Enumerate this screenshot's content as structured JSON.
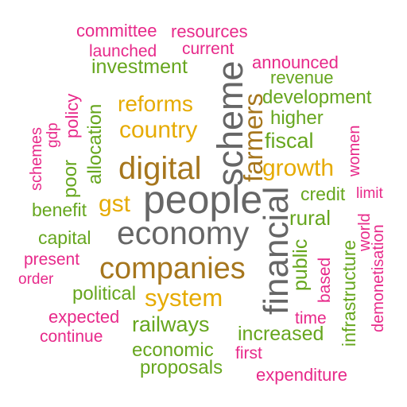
{
  "colors": {
    "pink": "#e7298a",
    "green": "#66a61e",
    "gold": "#e6ab02",
    "brown": "#a6761d",
    "gray": "#666666"
  },
  "words": {
    "committee": "committee",
    "resources": "resources",
    "launched": "launched",
    "current": "current",
    "announced": "announced",
    "investment": "investment",
    "revenue": "revenue",
    "development": "development",
    "reforms": "reforms",
    "higher": "higher",
    "country": "country",
    "fiscal": "fiscal",
    "digital": "digital",
    "growth": "growth",
    "credit": "credit",
    "limit": "limit",
    "gst": "gst",
    "benefit": "benefit",
    "people": "people",
    "rural": "rural",
    "economy": "economy",
    "capital": "capital",
    "present": "present",
    "order": "order",
    "companies": "companies",
    "political": "political",
    "system": "system",
    "expected": "expected",
    "continue": "continue",
    "railways": "railways",
    "time": "time",
    "increased": "increased",
    "economic": "economic",
    "first": "first",
    "proposals": "proposals",
    "expenditure": "expenditure",
    "scheme": "scheme",
    "farmers": "farmers",
    "financial": "financial",
    "policy": "policy",
    "gdp": "gdp",
    "schemes": "schemes",
    "poor": "poor",
    "allocation": "allocation",
    "women": "women",
    "public": "public",
    "based": "based",
    "infrastructure": "infrastructure",
    "world": "world",
    "demonetisation": "demonetisation"
  }
}
